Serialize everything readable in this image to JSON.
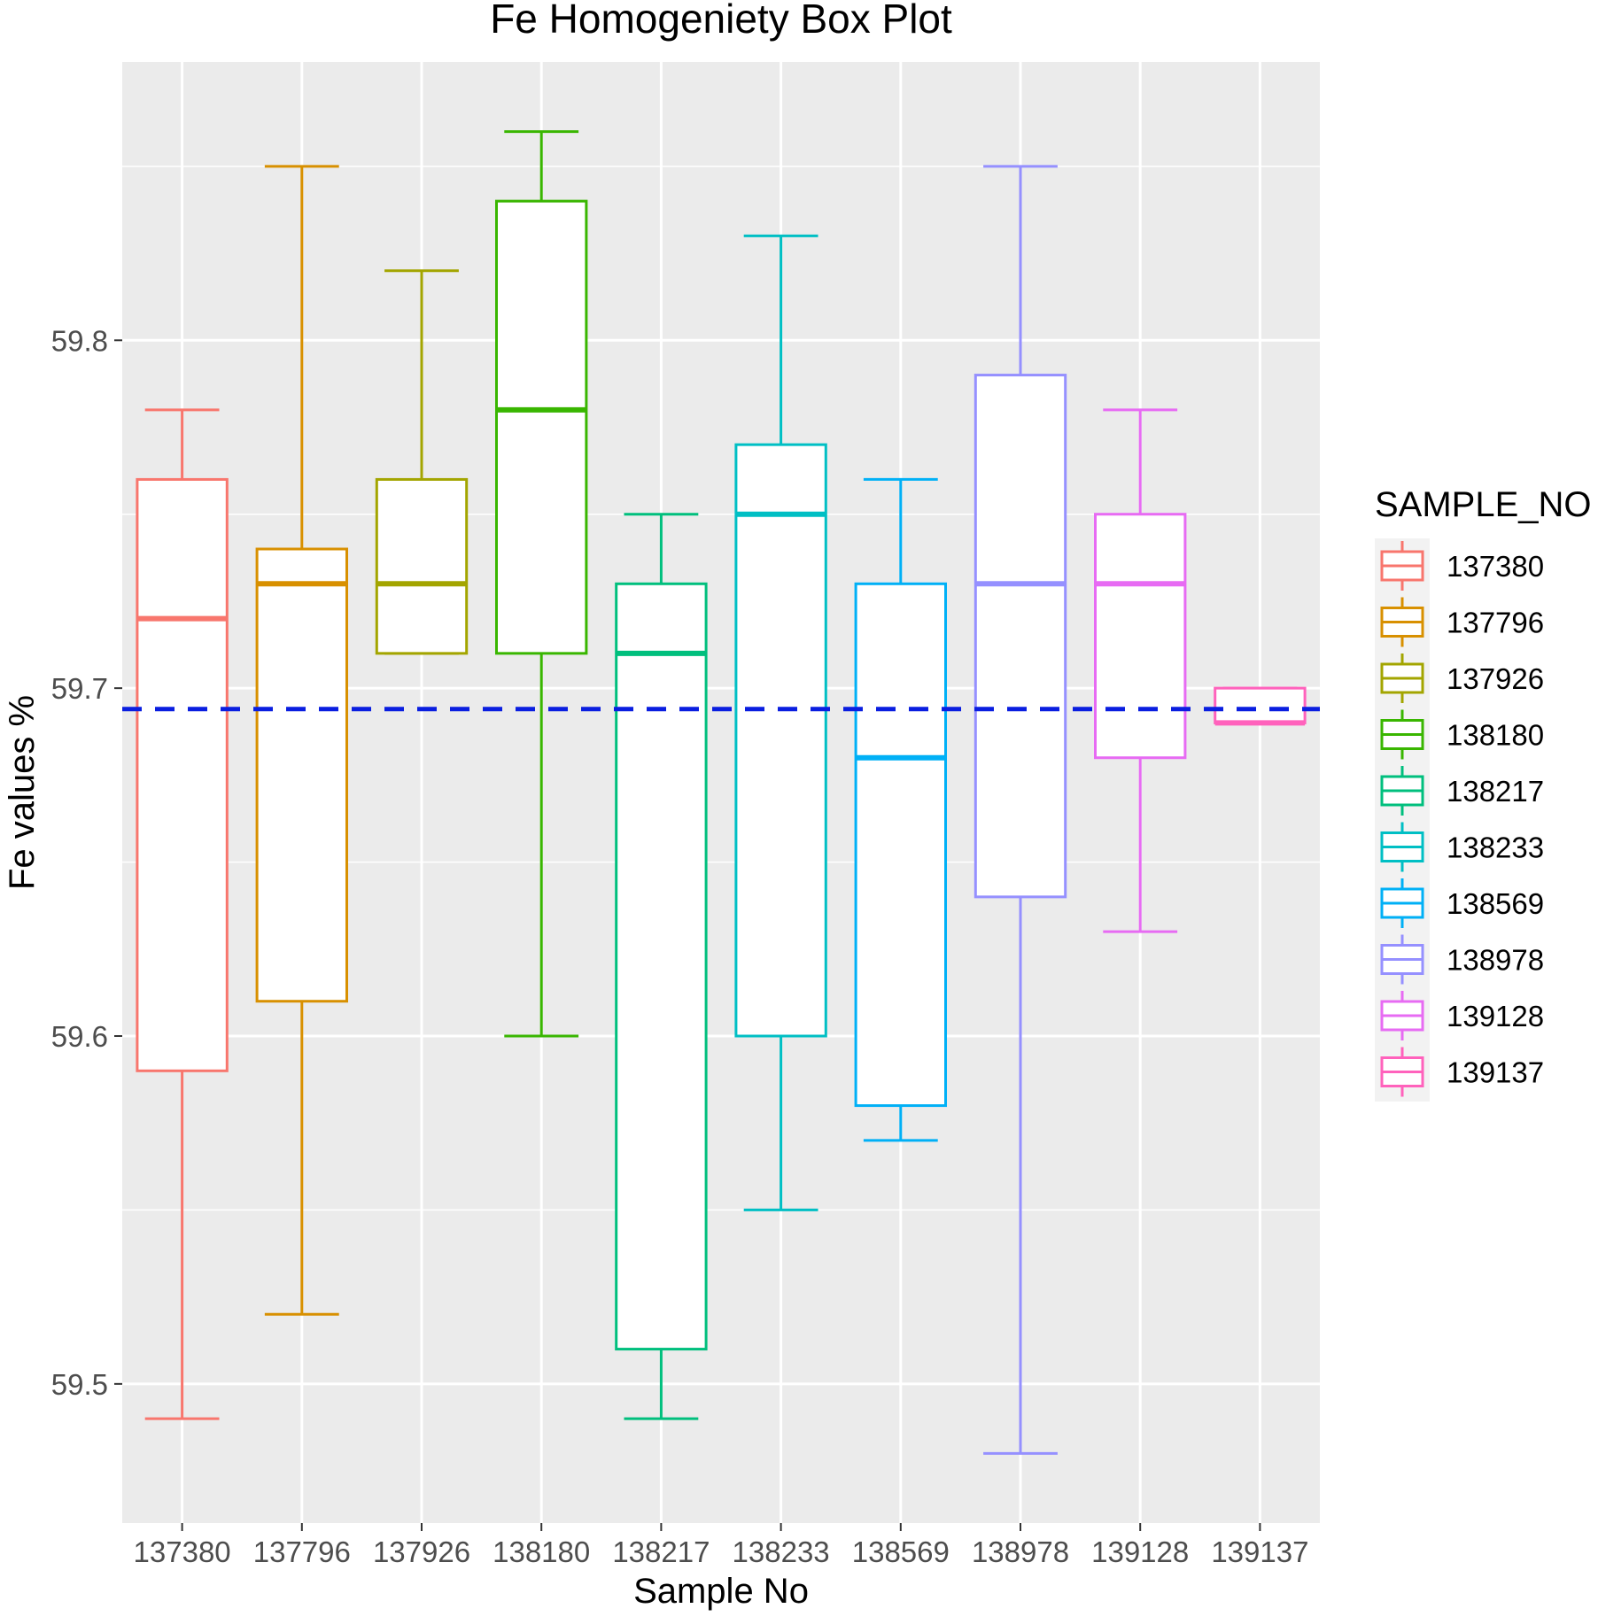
{
  "chart_data": {
    "type": "boxplot",
    "title": "Fe Homogeniety Box Plot",
    "xlabel": "Sample No",
    "ylabel": "Fe values %",
    "ylim": [
      59.46,
      59.88
    ],
    "y_ticks": [
      59.5,
      59.6,
      59.7,
      59.8
    ],
    "y_tick_labels": [
      "59.5",
      "59.6",
      "59.7",
      "59.8"
    ],
    "grid": true,
    "reference_line": {
      "y": 59.694,
      "style": "dashed",
      "color": "#0a1ee0"
    },
    "legend": {
      "title": "SAMPLE_NO",
      "position": "right"
    },
    "categories": [
      "137380",
      "137796",
      "137926",
      "138180",
      "138217",
      "138233",
      "138569",
      "138978",
      "139128",
      "139137"
    ],
    "series": [
      {
        "name": "137380",
        "color": "#F8766D",
        "min": 59.49,
        "q1": 59.59,
        "median": 59.72,
        "q3": 59.76,
        "max": 59.78
      },
      {
        "name": "137796",
        "color": "#D89000",
        "min": 59.52,
        "q1": 59.61,
        "median": 59.73,
        "q3": 59.74,
        "max": 59.85
      },
      {
        "name": "137926",
        "color": "#A3A500",
        "min": 59.71,
        "q1": 59.71,
        "median": 59.73,
        "q3": 59.76,
        "max": 59.82
      },
      {
        "name": "138180",
        "color": "#39B600",
        "min": 59.6,
        "q1": 59.71,
        "median": 59.78,
        "q3": 59.84,
        "max": 59.86
      },
      {
        "name": "138217",
        "color": "#00BF7D",
        "min": 59.49,
        "q1": 59.51,
        "median": 59.71,
        "q3": 59.73,
        "max": 59.75
      },
      {
        "name": "138233",
        "color": "#00BFC4",
        "min": 59.55,
        "q1": 59.6,
        "median": 59.75,
        "q3": 59.77,
        "max": 59.83
      },
      {
        "name": "138569",
        "color": "#00B0F6",
        "min": 59.57,
        "q1": 59.58,
        "median": 59.68,
        "q3": 59.73,
        "max": 59.76
      },
      {
        "name": "138978",
        "color": "#9590FF",
        "min": 59.48,
        "q1": 59.64,
        "median": 59.73,
        "q3": 59.79,
        "max": 59.85
      },
      {
        "name": "139128",
        "color": "#E76BF3",
        "min": 59.63,
        "q1": 59.68,
        "median": 59.73,
        "q3": 59.75,
        "max": 59.78
      },
      {
        "name": "139137",
        "color": "#FF62BC",
        "min": 59.69,
        "q1": 59.69,
        "median": 59.69,
        "q3": 59.7,
        "max": 59.7
      }
    ]
  }
}
